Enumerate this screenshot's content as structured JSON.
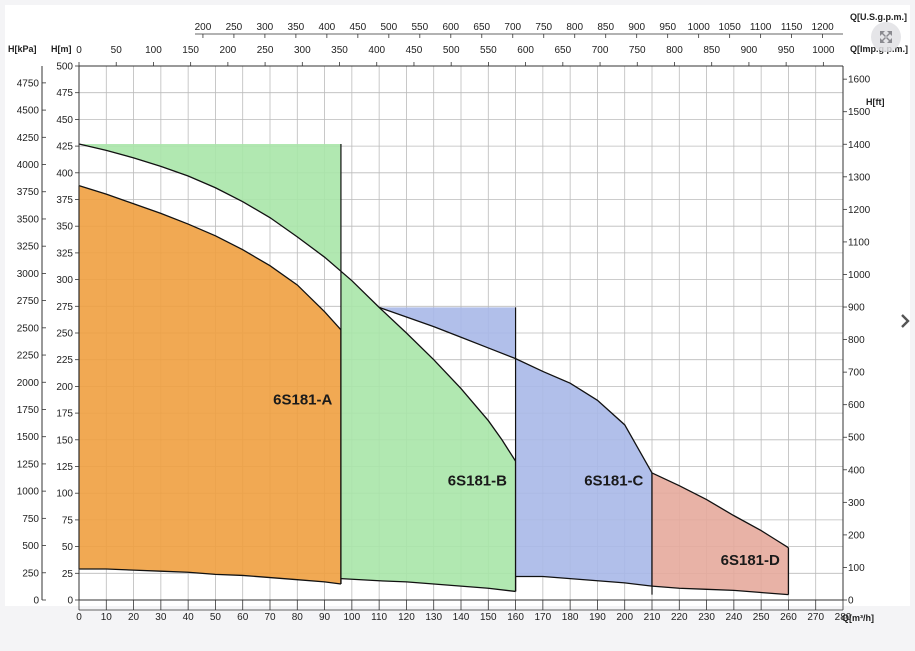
{
  "viewer": {
    "expand_icon": "expand-arrows-icon",
    "next_icon": "chevron-right-icon"
  },
  "chart_data": {
    "type": "area",
    "title": "",
    "xlabel": "Q[m³/h]",
    "ylabel": "H[m]",
    "xlim": [
      0,
      280
    ],
    "ylim": [
      0,
      500
    ],
    "grid": true,
    "axis_labels": {
      "x_bottom": "Q[m³/h]",
      "left_m": "H[m]",
      "left_kpa": "H[kPa]",
      "right_ft": "H[ft]",
      "top_imp": "Q[Imp.g.p.m.]",
      "top_us": "Q[U.S.g.p.m.]"
    },
    "x_ticks": [
      0,
      10,
      20,
      30,
      40,
      50,
      60,
      70,
      80,
      90,
      100,
      110,
      120,
      130,
      140,
      150,
      160,
      170,
      180,
      190,
      200,
      210,
      220,
      230,
      240,
      250,
      260,
      270,
      280
    ],
    "y_m_ticks": [
      0,
      25,
      50,
      75,
      100,
      125,
      150,
      175,
      200,
      225,
      250,
      275,
      300,
      325,
      350,
      375,
      400,
      425,
      450,
      475,
      500
    ],
    "y_kpa_ticks": [
      0,
      250,
      500,
      750,
      1000,
      1250,
      1500,
      1750,
      2000,
      2250,
      2500,
      2750,
      3000,
      3250,
      3500,
      3750,
      4000,
      4250,
      4500,
      4750
    ],
    "y_ft_ticks": [
      0,
      100,
      200,
      300,
      400,
      500,
      600,
      700,
      800,
      900,
      1000,
      1100,
      1200,
      1300,
      1400,
      1500,
      1600
    ],
    "top_imp_ticks": [
      0,
      50,
      100,
      150,
      200,
      250,
      300,
      350,
      400,
      450,
      500,
      550,
      600,
      650,
      700,
      750,
      800,
      850,
      900,
      950,
      1000
    ],
    "top_us_ticks": [
      200,
      250,
      300,
      350,
      400,
      450,
      500,
      550,
      600,
      650,
      700,
      750,
      800,
      850,
      900,
      950,
      1000,
      1050,
      1100,
      1150,
      1200
    ],
    "series": [
      {
        "name": "6S181-A",
        "color": "#f0a040",
        "upper": [
          [
            0,
            388
          ],
          [
            10,
            380
          ],
          [
            20,
            371
          ],
          [
            30,
            362
          ],
          [
            40,
            352
          ],
          [
            50,
            341
          ],
          [
            60,
            328
          ],
          [
            70,
            313
          ],
          [
            80,
            295
          ],
          [
            90,
            270
          ],
          [
            96,
            253
          ]
        ],
        "lower": [
          [
            0,
            29
          ],
          [
            10,
            29
          ],
          [
            20,
            28
          ],
          [
            30,
            27
          ],
          [
            40,
            26
          ],
          [
            50,
            24
          ],
          [
            60,
            23
          ],
          [
            70,
            21
          ],
          [
            80,
            19
          ],
          [
            90,
            17
          ],
          [
            96,
            15
          ]
        ],
        "cut_top": 206
      },
      {
        "name": "6S181-B",
        "color": "#a8e6a8",
        "upper": [
          [
            0,
            427
          ],
          [
            10,
            421
          ],
          [
            20,
            414
          ],
          [
            30,
            406
          ],
          [
            40,
            397
          ],
          [
            50,
            386
          ],
          [
            60,
            373
          ],
          [
            70,
            358
          ],
          [
            80,
            340
          ],
          [
            90,
            321
          ],
          [
            100,
            299
          ],
          [
            110,
            274
          ],
          [
            120,
            250
          ],
          [
            130,
            225
          ],
          [
            140,
            198
          ],
          [
            150,
            168
          ],
          [
            155,
            150
          ],
          [
            160,
            130
          ]
        ],
        "lower": [
          [
            96,
            20
          ],
          [
            110,
            18
          ],
          [
            120,
            17
          ],
          [
            130,
            15
          ],
          [
            140,
            13
          ],
          [
            150,
            11
          ],
          [
            160,
            8
          ]
        ],
        "cut_bottom": 15,
        "cut_top": 253
      },
      {
        "name": "6S181-C",
        "color": "#a8b8e8",
        "upper": [
          [
            110,
            274
          ],
          [
            120,
            265
          ],
          [
            130,
            256
          ],
          [
            140,
            246
          ],
          [
            150,
            236
          ],
          [
            160,
            226
          ],
          [
            170,
            214
          ],
          [
            180,
            203
          ],
          [
            190,
            187
          ],
          [
            200,
            164
          ],
          [
            210,
            119
          ]
        ],
        "lower": [
          [
            160,
            22
          ],
          [
            170,
            22
          ],
          [
            180,
            20
          ],
          [
            190,
            18
          ],
          [
            200,
            16
          ],
          [
            210,
            13
          ]
        ],
        "cut_bottom": 8,
        "cut_top": 130
      },
      {
        "name": "6S181-D",
        "color": "#e6aa9c",
        "upper": [
          [
            210,
            119
          ],
          [
            220,
            107
          ],
          [
            230,
            94
          ],
          [
            240,
            79
          ],
          [
            250,
            65
          ],
          [
            255,
            57
          ],
          [
            260,
            49
          ]
        ],
        "lower": [
          [
            210,
            13
          ],
          [
            220,
            11
          ],
          [
            230,
            10
          ],
          [
            240,
            9
          ],
          [
            250,
            7
          ],
          [
            260,
            5
          ]
        ],
        "cut_bottom": 5,
        "cut_top": 49
      }
    ],
    "annotations": [
      {
        "text": "6S181-A",
        "x": 82,
        "y": 183
      },
      {
        "text": "6S181-B",
        "x": 146,
        "y": 107
      },
      {
        "text": "6S181-C",
        "x": 196,
        "y": 107
      },
      {
        "text": "6S181-D",
        "x": 246,
        "y": 33
      }
    ]
  }
}
